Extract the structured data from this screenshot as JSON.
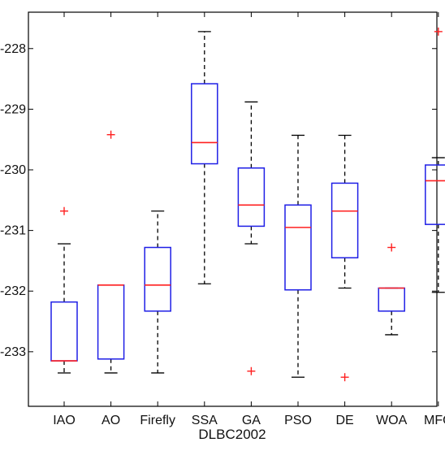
{
  "colors": {
    "box": "#1f1fe6",
    "median": "#ff2020",
    "whisker": "#000000",
    "outlier": "#ff2020",
    "axis": "#000000"
  },
  "chart_data": {
    "type": "boxplot",
    "title": "",
    "xlabel": "DLBC2002",
    "ylabel": "",
    "ylim": [
      -233.9,
      -227.4
    ],
    "yticks": [
      -233,
      -232,
      -231,
      -230,
      -229,
      -228
    ],
    "yticklabels": [
      "-233",
      "-232",
      "-231",
      "-230",
      "-229",
      "-228"
    ],
    "grid": false,
    "categories": [
      "IAO",
      "AO",
      "Firefly",
      "SSA",
      "GA",
      "PSO",
      "DE",
      "WOA",
      "MFO"
    ],
    "boxes": [
      {
        "category": "IAO",
        "whisker_low": -233.35,
        "q1": -233.15,
        "median": -233.15,
        "q3": -232.18,
        "whisker_high": -231.22,
        "outliers": [
          -230.68
        ]
      },
      {
        "category": "AO",
        "whisker_low": -233.35,
        "q1": -233.12,
        "median": -231.9,
        "q3": -231.9,
        "whisker_high": -231.9,
        "outliers": [
          -229.42
        ]
      },
      {
        "category": "Firefly",
        "whisker_low": -233.35,
        "q1": -232.33,
        "median": -231.9,
        "q3": -231.28,
        "whisker_high": -230.68,
        "outliers": []
      },
      {
        "category": "SSA",
        "whisker_low": -231.88,
        "q1": -229.9,
        "median": -229.55,
        "q3": -228.58,
        "whisker_high": -227.72,
        "outliers": []
      },
      {
        "category": "GA",
        "whisker_low": -231.22,
        "q1": -230.93,
        "median": -230.58,
        "q3": -229.97,
        "whisker_high": -228.88,
        "outliers": [
          -233.32
        ]
      },
      {
        "category": "PSO",
        "whisker_low": -233.42,
        "q1": -231.98,
        "median": -230.95,
        "q3": -230.58,
        "whisker_high": -229.43,
        "outliers": []
      },
      {
        "category": "DE",
        "whisker_low": -231.95,
        "q1": -231.45,
        "median": -230.68,
        "q3": -230.22,
        "whisker_high": -229.43,
        "outliers": [
          -233.42
        ]
      },
      {
        "category": "WOA",
        "whisker_low": -232.72,
        "q1": -232.33,
        "median": -231.95,
        "q3": -231.95,
        "whisker_high": -231.95,
        "outliers": [
          -231.28
        ]
      },
      {
        "category": "MFO",
        "whisker_low": -232.02,
        "q1": -230.9,
        "median": -230.18,
        "q3": -229.92,
        "whisker_high": -229.8,
        "outliers": [
          -227.72
        ]
      }
    ]
  }
}
